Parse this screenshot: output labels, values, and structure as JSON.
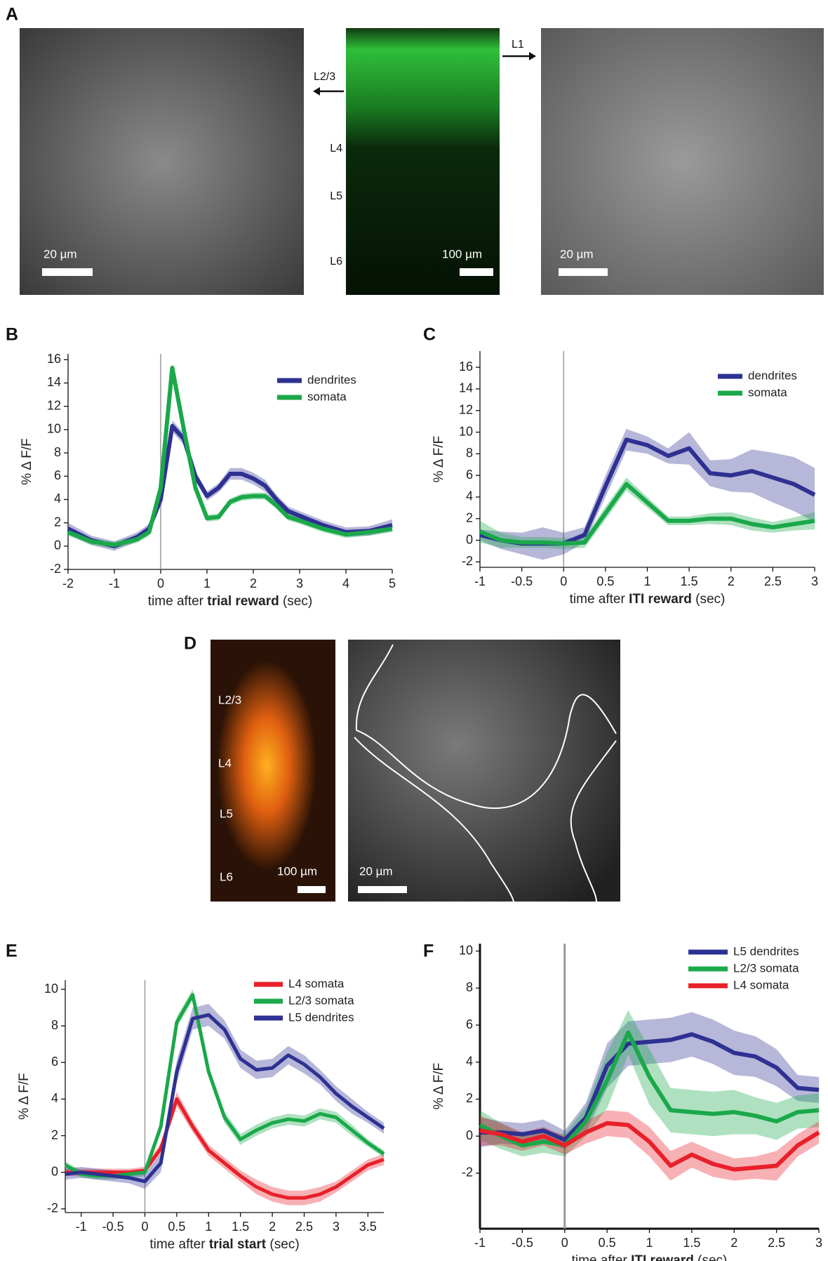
{
  "panel_a": {
    "letter": "A",
    "left_scalebar": "20 µm",
    "arrow_left": "L2/3",
    "layers": [
      "L4",
      "L5",
      "L6"
    ],
    "center_scalebar": "100 µm",
    "arrow_right": "L1",
    "right_scalebar": "20 µm"
  },
  "panel_d": {
    "letter": "D",
    "layers": [
      "L2/3",
      "L4",
      "L5",
      "L6"
    ],
    "left_scalebar": "100 µm",
    "right_scalebar": "20 µm"
  },
  "chart_data": [
    {
      "type": "line",
      "panel": "B",
      "ylabel": "% Δ F/F",
      "xlabel": {
        "pre": "time after ",
        "bold": "trial reward",
        "post": " (sec)"
      },
      "x": [
        -2,
        -1.5,
        -1,
        -0.5,
        -0.25,
        0,
        0.25,
        0.5,
        0.75,
        1,
        1.25,
        1.5,
        1.75,
        2,
        2.25,
        2.5,
        2.75,
        3,
        3.5,
        4,
        4.5,
        5
      ],
      "series": [
        {
          "name": "dendrites",
          "color": "#2e3192",
          "values": [
            1.5,
            0.5,
            0,
            0.8,
            1.5,
            4,
            10.3,
            9.2,
            6,
            4.3,
            5,
            6.2,
            6.2,
            5.8,
            5.2,
            4,
            3,
            2.6,
            1.8,
            1.2,
            1.3,
            1.8
          ],
          "errors": [
            0.5,
            0.4,
            0.4,
            0.4,
            0.4,
            0.5,
            0.5,
            0.5,
            0.4,
            0.4,
            0.4,
            0.5,
            0.5,
            0.5,
            0.5,
            0.4,
            0.4,
            0.4,
            0.4,
            0.4,
            0.4,
            0.5
          ]
        },
        {
          "name": "somata",
          "color": "#1aa84a",
          "values": [
            1.2,
            0.4,
            0.1,
            0.6,
            1.2,
            5,
            15.3,
            10,
            5,
            2.4,
            2.5,
            3.8,
            4.2,
            4.3,
            4.3,
            3.5,
            2.5,
            2.2,
            1.5,
            1,
            1.2,
            1.5
          ],
          "errors": [
            0.3,
            0.3,
            0.3,
            0.3,
            0.3,
            0.4,
            0.4,
            0.4,
            0.3,
            0.3,
            0.3,
            0.3,
            0.3,
            0.3,
            0.3,
            0.3,
            0.3,
            0.3,
            0.3,
            0.3,
            0.3,
            0.3
          ]
        }
      ],
      "xlim": [
        -2,
        5
      ],
      "ylim": [
        -2,
        16.5
      ],
      "xticks": [
        -2,
        -1,
        0,
        1,
        2,
        3,
        4,
        5
      ],
      "yticks": [
        -2,
        0,
        2,
        4,
        6,
        8,
        10,
        12,
        14,
        16
      ],
      "vline": 0,
      "legend": "upper right"
    },
    {
      "type": "line",
      "panel": "C",
      "ylabel": "% Δ F/F",
      "xlabel": {
        "pre": "time after ",
        "bold": "ITI reward",
        "post": " (sec)"
      },
      "x": [
        -1,
        -0.75,
        -0.5,
        -0.25,
        0,
        0.25,
        0.5,
        0.75,
        1,
        1.25,
        1.5,
        1.75,
        2,
        2.25,
        2.5,
        2.75,
        3
      ],
      "series": [
        {
          "name": "dendrites",
          "color": "#2e3192",
          "values": [
            0.5,
            0,
            -0.3,
            -0.3,
            -0.3,
            0.5,
            5,
            9.3,
            8.8,
            7.8,
            8.5,
            6.2,
            6,
            6.4,
            5.8,
            5.2,
            4.2
          ],
          "errors": [
            0.5,
            0.8,
            1,
            1.5,
            1,
            0.7,
            1,
            1,
            0.8,
            0.7,
            1.5,
            1.2,
            1.5,
            2,
            2.3,
            2.5,
            2.5
          ]
        },
        {
          "name": "somata",
          "color": "#1aa84a",
          "values": [
            0.8,
            0,
            -0.2,
            -0.2,
            -0.3,
            -0.2,
            2.5,
            5.2,
            3.5,
            1.8,
            1.8,
            2,
            2,
            1.5,
            1.2,
            1.5,
            1.8
          ],
          "errors": [
            1,
            0.7,
            0.5,
            0.5,
            0.5,
            0.5,
            0.6,
            0.6,
            0.5,
            0.4,
            0.4,
            0.5,
            0.6,
            0.6,
            0.5,
            0.6,
            0.8
          ]
        }
      ],
      "xlim": [
        -1,
        3
      ],
      "ylim": [
        -2.5,
        17.5
      ],
      "xticks": [
        -1,
        -0.5,
        0,
        0.5,
        1,
        1.5,
        2,
        2.5,
        3
      ],
      "yticks": [
        -2,
        0,
        2,
        4,
        6,
        8,
        10,
        12,
        14,
        16
      ],
      "vline": 0,
      "legend": "upper right"
    },
    {
      "type": "line",
      "panel": "E",
      "ylabel": "% Δ F/F",
      "xlabel": {
        "pre": "time after ",
        "bold": "trial start",
        "post": " (sec)"
      },
      "x": [
        -1.25,
        -1,
        -0.75,
        -0.5,
        -0.25,
        0,
        0.25,
        0.5,
        0.75,
        1,
        1.25,
        1.5,
        1.75,
        2,
        2.25,
        2.5,
        2.75,
        3,
        3.25,
        3.5,
        3.75
      ],
      "series": [
        {
          "name": "L4 somata",
          "color": "#e8202a",
          "values": [
            0,
            0,
            0,
            0,
            0,
            0.1,
            1.3,
            4,
            2.5,
            1.2,
            0.5,
            -0.2,
            -0.8,
            -1.2,
            -1.4,
            -1.4,
            -1.2,
            -0.8,
            -0.2,
            0.4,
            0.7
          ],
          "errors": [
            0.2,
            0.2,
            0.2,
            0.2,
            0.2,
            0.2,
            0.3,
            0.4,
            0.3,
            0.3,
            0.3,
            0.3,
            0.4,
            0.4,
            0.4,
            0.4,
            0.4,
            0.3,
            0.3,
            0.3,
            0.3
          ]
        },
        {
          "name": "L2/3 somata",
          "color": "#1aa84a",
          "values": [
            0.4,
            -0.1,
            -0.2,
            -0.2,
            -0.1,
            0,
            2.5,
            8.2,
            9.7,
            5.5,
            3,
            1.8,
            2.3,
            2.7,
            2.9,
            2.8,
            3.2,
            3,
            2.3,
            1.6,
            1
          ],
          "errors": [
            0.2,
            0.2,
            0.2,
            0.2,
            0.2,
            0.2,
            0.3,
            0.3,
            0.3,
            0.3,
            0.3,
            0.3,
            0.3,
            0.3,
            0.3,
            0.3,
            0.3,
            0.3,
            0.3,
            0.2,
            0.2
          ]
        },
        {
          "name": "L5 dendrites",
          "color": "#2e3192",
          "values": [
            -0.1,
            0,
            -0.1,
            -0.2,
            -0.3,
            -0.5,
            0.5,
            5.5,
            8.4,
            8.6,
            7.8,
            6.2,
            5.6,
            5.7,
            6.4,
            5.9,
            5.2,
            4.3,
            3.6,
            3,
            2.4
          ],
          "errors": [
            0.3,
            0.3,
            0.3,
            0.3,
            0.3,
            0.4,
            0.5,
            0.6,
            0.6,
            0.6,
            0.5,
            0.5,
            0.5,
            0.5,
            0.5,
            0.5,
            0.4,
            0.4,
            0.4,
            0.3,
            0.3
          ]
        }
      ],
      "xlim": [
        -1.25,
        3.75
      ],
      "ylim": [
        -2.2,
        10.5
      ],
      "xticks": [
        -1,
        -0.5,
        0,
        0.5,
        1,
        1.5,
        2,
        2.5,
        3,
        3.5
      ],
      "yticks": [
        -2,
        0,
        2,
        4,
        6,
        8,
        10
      ],
      "vline": 0,
      "legend": "upper right"
    },
    {
      "type": "line",
      "panel": "F",
      "ylabel": "% Δ F/F",
      "xlabel": {
        "pre": "time after ",
        "bold": "ITI reward",
        "post": " (sec)"
      },
      "x": [
        -1,
        -0.75,
        -0.5,
        -0.25,
        0,
        0.25,
        0.5,
        0.75,
        1,
        1.25,
        1.5,
        1.75,
        2,
        2.25,
        2.5,
        2.75,
        3
      ],
      "series": [
        {
          "name": "L5 dendrites",
          "color": "#2e3192",
          "values": [
            0.2,
            0.2,
            0.1,
            0.3,
            -0.2,
            1,
            3.8,
            5,
            5.1,
            5.2,
            5.5,
            5.1,
            4.5,
            4.3,
            3.7,
            2.6,
            2.5
          ],
          "errors": [
            0.8,
            0.6,
            0.6,
            0.6,
            0.5,
            0.8,
            1.2,
            1.2,
            1.2,
            1.2,
            1.2,
            1.2,
            1.2,
            1.1,
            1,
            0.7,
            0.7
          ]
        },
        {
          "name": "L2/3 somata",
          "color": "#1aa84a",
          "values": [
            0.6,
            0,
            -0.5,
            -0.3,
            -0.5,
            0.8,
            3,
            5.6,
            3.2,
            1.4,
            1.3,
            1.2,
            1.3,
            1.1,
            0.8,
            1.3,
            1.4
          ],
          "errors": [
            0.8,
            0.7,
            0.6,
            0.6,
            0.6,
            0.8,
            1.5,
            1.2,
            1.5,
            1.2,
            1.2,
            1.2,
            1.2,
            1,
            1,
            0.9,
            0.9
          ]
        },
        {
          "name": "L4 somata",
          "color": "#e8202a",
          "values": [
            0.3,
            0.1,
            -0.3,
            0,
            -0.5,
            0.2,
            0.7,
            0.6,
            -0.3,
            -1.6,
            -1,
            -1.5,
            -1.8,
            -1.7,
            -1.6,
            -0.5,
            0.2
          ],
          "errors": [
            0.8,
            0.6,
            0.5,
            0.5,
            0.5,
            0.6,
            0.7,
            0.7,
            0.8,
            0.8,
            0.7,
            0.7,
            0.6,
            0.6,
            0.8,
            0.6,
            0.6
          ]
        }
      ],
      "xlim": [
        -1,
        3
      ],
      "ylim": [
        -5,
        10.4
      ],
      "xticks": [
        -1,
        -0.5,
        0,
        0.5,
        1,
        1.5,
        2,
        2.5,
        3
      ],
      "yticks": [
        -2,
        0,
        2,
        4,
        6,
        8,
        10
      ],
      "vline": 0,
      "legend": "upper right"
    }
  ]
}
